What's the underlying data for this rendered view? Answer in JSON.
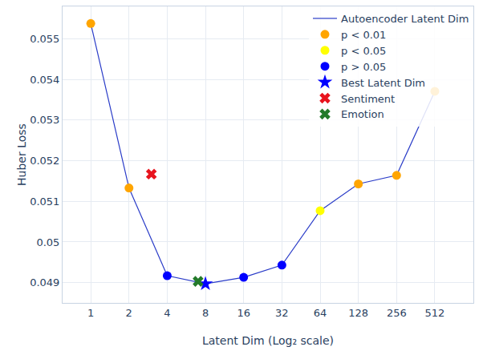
{
  "chart_data": {
    "type": "line",
    "x_label": "Latent Dim (Log₂ scale)",
    "y_label": "Huber Loss",
    "x": [
      1,
      2,
      4,
      8,
      16,
      32,
      64,
      128,
      256,
      512
    ],
    "series": [
      {
        "name": "Autoencoder Latent Dim",
        "type": "line",
        "color": "#2a3cc8",
        "line_style": "solid",
        "values": [
          0.05538,
          0.05133,
          0.04917,
          0.04897,
          0.04913,
          0.04943,
          0.05077,
          0.05143,
          0.05164,
          0.05371
        ]
      },
      {
        "name": "p < 0.01",
        "type": "scatter",
        "color": "#ffa500",
        "marker": "circle",
        "values": [
          0.05538,
          0.05133,
          null,
          null,
          null,
          null,
          null,
          0.05143,
          0.05164,
          0.05371
        ]
      },
      {
        "name": "p < 0.05",
        "type": "scatter",
        "color": "#ffff00",
        "marker": "circle",
        "values": [
          null,
          null,
          null,
          null,
          null,
          null,
          0.05077,
          null,
          null,
          null
        ]
      },
      {
        "name": "p > 0.05",
        "type": "scatter",
        "color": "#0000ff",
        "marker": "circle",
        "values": [
          null,
          null,
          0.04917,
          null,
          0.04913,
          0.04943,
          null,
          null,
          null,
          null
        ]
      },
      {
        "name": "Best Latent Dim",
        "type": "scatter",
        "color": "#0000ff",
        "marker": "star",
        "values": [
          null,
          null,
          null,
          0.04897,
          null,
          null,
          null,
          null,
          null,
          null
        ]
      },
      {
        "name": "Sentiment",
        "type": "scatter",
        "color": "#e8141e",
        "marker": "x",
        "x": [
          3
        ],
        "values": [
          0.05167
        ]
      },
      {
        "name": "Emotion",
        "type": "scatter",
        "color": "#237a2a",
        "marker": "x",
        "x": [
          7
        ],
        "values": [
          0.04903
        ]
      }
    ],
    "log": "x",
    "xlim": [
      0.6,
      1030
    ],
    "xticks": [
      1,
      2,
      4,
      8,
      16,
      32,
      64,
      128,
      256,
      512
    ],
    "ylim": [
      0.0485,
      0.0558
    ],
    "yticks": [
      0.049,
      0.05,
      0.051,
      0.052,
      0.053,
      0.054,
      0.055
    ],
    "grid": true,
    "legend": "top right"
  }
}
